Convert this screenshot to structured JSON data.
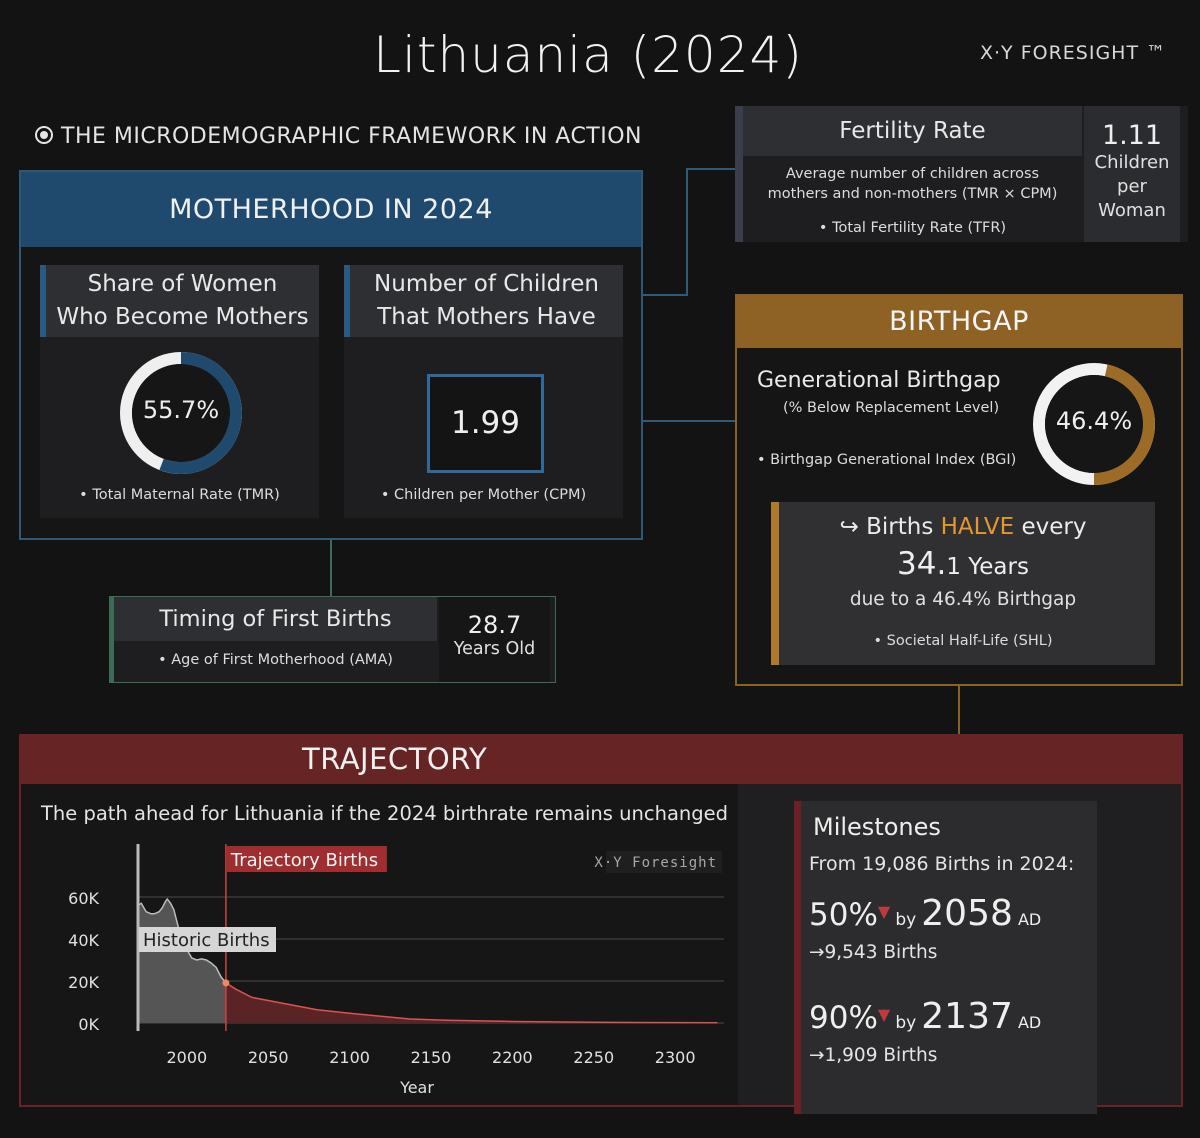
{
  "header": {
    "title": "Lithuania (2024)",
    "brand": "X·Y FORESIGHT ™",
    "framework": "THE MICRODEMOGRAPHIC FRAMEWORK IN ACTION"
  },
  "motherhood": {
    "title": "MOTHERHOOD IN 2024",
    "share": {
      "label_line1": "Share of Women",
      "label_line2": "Who Become Mothers",
      "value": "55.7%",
      "fraction": 0.557,
      "caption": "• Total Maternal Rate (TMR)"
    },
    "children": {
      "label_line1": "Number of Children",
      "label_line2": "That Mothers Have",
      "value": "1.99",
      "caption": "• Children per Mother (CPM)"
    }
  },
  "fertility": {
    "title": "Fertility Rate",
    "desc_line1": "Average number of children across",
    "desc_line2": "mothers and non-mothers (TMR × CPM)",
    "caption": "• Total Fertility Rate (TFR)",
    "value": "1.11",
    "unit_line1": "Children",
    "unit_line2": "per",
    "unit_line3": "Woman"
  },
  "birthgap": {
    "title": "BIRTHGAP",
    "subtitle": "Generational Birthgap",
    "subnote": "(% Below Replacement Level)",
    "caption": "• Birthgap Generational Index (BGI)",
    "value": "46.4%",
    "fraction": 0.464,
    "halve_prefix": "Births ",
    "halve_word": "HALVE",
    "halve_suffix": " every",
    "years_big": "34.",
    "years_small": "1 Years",
    "due": "due to a 46.4% Birthgap",
    "shl_caption": "• Societal Half-Life (SHL)"
  },
  "timing": {
    "title": "Timing of First Births",
    "caption": "• Age of First Motherhood (AMA)",
    "value": "28.7",
    "unit": "Years Old"
  },
  "trajectory": {
    "title": "TRAJECTORY",
    "subtitle": "The path ahead for Lithuania if the 2024 birthrate remains unchanged",
    "watermark": "X·Y Foresight",
    "historic_label": "Historic Births",
    "trajectory_label": "Trajectory Births",
    "xlabel": "Year"
  },
  "milestones": {
    "title": "Milestones",
    "from": "From 19,086 Births in 2024:",
    "m1_pct": "50%",
    "m1_by": "by",
    "m1_year": "2058",
    "m1_ad": "AD",
    "m1_births": "9,543 Births",
    "m2_pct": "90%",
    "m2_by": "by",
    "m2_year": "2137",
    "m2_ad": "AD",
    "m2_births": "1,909 Births"
  },
  "colors": {
    "motherhood": "#1f4a6e",
    "birthgap": "#8e6225",
    "trajectory": "#672425",
    "historic_fill": "#5a5a5a",
    "trajectory_line": "#d9534f"
  },
  "chart_data": {
    "type": "area",
    "title": "",
    "xlabel": "Year",
    "ylabel": "",
    "xlim": [
      1970,
      2330
    ],
    "ylim": [
      0,
      70000
    ],
    "xticks": [
      2000,
      2050,
      2100,
      2150,
      2200,
      2250,
      2300
    ],
    "yticks": [
      0,
      20000,
      40000,
      60000
    ],
    "ytick_labels": [
      "0K",
      "20K",
      "40K",
      "60K"
    ],
    "series": [
      {
        "name": "Historic Births",
        "x": [
          1970,
          1972,
          1975,
          1978,
          1980,
          1983,
          1985,
          1987,
          1988,
          1990,
          1992,
          1994,
          1996,
          1998,
          2000,
          2003,
          2006,
          2009,
          2012,
          2015,
          2018,
          2021,
          2024
        ],
        "y": [
          56000,
          57000,
          53000,
          52000,
          52000,
          53000,
          55000,
          58000,
          59000,
          57000,
          54000,
          48000,
          42000,
          38000,
          35000,
          31000,
          30000,
          30500,
          30000,
          28500,
          26500,
          22000,
          19086
        ]
      },
      {
        "name": "Trajectory Births",
        "x": [
          2024,
          2030,
          2040,
          2058,
          2080,
          2100,
          2137,
          2160,
          2200,
          2250,
          2300,
          2326
        ],
        "y": [
          19086,
          16160,
          12180,
          9543,
          6300,
          4650,
          1909,
          1330,
          730,
          340,
          160,
          110
        ]
      }
    ]
  }
}
